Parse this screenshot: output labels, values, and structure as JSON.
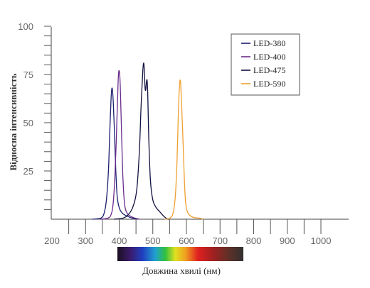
{
  "chart_data": {
    "type": "line",
    "xlabel": "Довжина хвилі (нм)",
    "ylabel": "Відносна інтенсивність",
    "xlim": [
      200,
      1000
    ],
    "ylim": [
      0,
      100
    ],
    "x_ticks": [
      200,
      300,
      400,
      500,
      600,
      700,
      800,
      900,
      1000
    ],
    "y_ticks": [
      25,
      50,
      75,
      100
    ],
    "legend_position": "top-right",
    "grid": false,
    "series": [
      {
        "name": "LED-380",
        "color": "#1a1f6e",
        "points": [
          [
            320,
            0
          ],
          [
            345,
            0.5
          ],
          [
            355,
            3
          ],
          [
            362,
            10
          ],
          [
            368,
            25
          ],
          [
            372,
            45
          ],
          [
            376,
            63
          ],
          [
            379,
            68
          ],
          [
            382,
            62
          ],
          [
            386,
            45
          ],
          [
            390,
            25
          ],
          [
            394,
            12
          ],
          [
            400,
            6
          ],
          [
            410,
            3
          ],
          [
            425,
            1.5
          ],
          [
            440,
            0.5
          ],
          [
            455,
            0
          ]
        ]
      },
      {
        "name": "LED-400",
        "color": "#6a2c8c",
        "points": [
          [
            345,
            0
          ],
          [
            365,
            0.5
          ],
          [
            375,
            2
          ],
          [
            382,
            8
          ],
          [
            388,
            25
          ],
          [
            393,
            50
          ],
          [
            397,
            72
          ],
          [
            400,
            77
          ],
          [
            403,
            70
          ],
          [
            407,
            45
          ],
          [
            411,
            22
          ],
          [
            416,
            8
          ],
          [
            424,
            3
          ],
          [
            440,
            1
          ],
          [
            460,
            0
          ]
        ]
      },
      {
        "name": "LED-475",
        "color": "#111140",
        "points": [
          [
            385,
            0
          ],
          [
            410,
            0.5
          ],
          [
            425,
            2
          ],
          [
            440,
            6
          ],
          [
            452,
            15
          ],
          [
            460,
            35
          ],
          [
            465,
            58
          ],
          [
            470,
            76
          ],
          [
            473,
            81
          ],
          [
            475,
            76
          ],
          [
            477,
            68
          ],
          [
            479,
            67
          ],
          [
            481,
            71
          ],
          [
            483,
            72
          ],
          [
            485,
            65
          ],
          [
            488,
            42
          ],
          [
            493,
            20
          ],
          [
            500,
            10
          ],
          [
            510,
            6
          ],
          [
            520,
            4
          ],
          [
            530,
            2
          ],
          [
            540,
            0.5
          ],
          [
            548,
            0
          ]
        ]
      },
      {
        "name": "LED-590",
        "color": "#f0a030",
        "points": [
          [
            535,
            0
          ],
          [
            550,
            0.5
          ],
          [
            560,
            3
          ],
          [
            567,
            12
          ],
          [
            572,
            30
          ],
          [
            576,
            55
          ],
          [
            579,
            68
          ],
          [
            581,
            72
          ],
          [
            583,
            70
          ],
          [
            586,
            58
          ],
          [
            590,
            40
          ],
          [
            594,
            20
          ],
          [
            598,
            8
          ],
          [
            605,
            3
          ],
          [
            620,
            1
          ],
          [
            640,
            0.5
          ],
          [
            650,
            0
          ]
        ]
      }
    ]
  }
}
